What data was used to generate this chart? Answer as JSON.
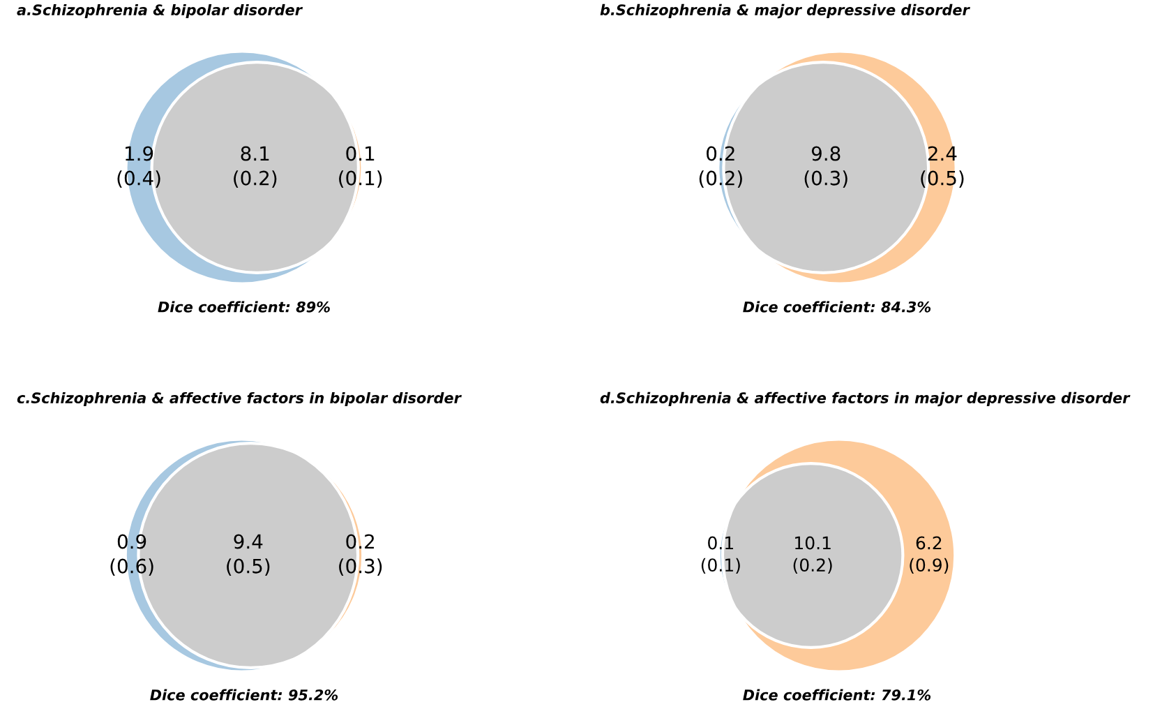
{
  "chart_data": [
    {
      "type": "other",
      "title": "a.Schizophrenia & bipolar disorder",
      "values": [
        1.9,
        8.1,
        0.1
      ],
      "colors": [
        "#a7c8e1",
        "#cccccc",
        "#fdca9a"
      ],
      "data_labels": true,
      "annotations": [
        "(0.4)",
        "(0.2)",
        "(0.1)",
        "Dice coefficient: 89%"
      ]
    },
    {
      "type": "other",
      "title": "b.Schizophrenia & major depressive disorder",
      "values": [
        0.2,
        9.8,
        2.4
      ],
      "colors": [
        "#a7c8e1",
        "#cccccc",
        "#fdca9a"
      ],
      "data_labels": true,
      "annotations": [
        "(0.2)",
        "(0.3)",
        "(0.5)",
        "Dice coefficient: 84.3%"
      ]
    },
    {
      "type": "other",
      "title": "c.Schizophrenia & affective factors in bipolar disorder",
      "values": [
        0.9,
        9.4,
        0.2
      ],
      "colors": [
        "#a7c8e1",
        "#cccccc",
        "#fdca9a"
      ],
      "data_labels": true,
      "annotations": [
        "(0.6)",
        "(0.5)",
        "(0.3)",
        "Dice coefficient: 95.2%"
      ]
    },
    {
      "type": "other",
      "title": "d.Schizophrenia & affective factors in major depressive disorder",
      "values": [
        0.1,
        10.1,
        6.2
      ],
      "colors": [
        "#a7c8e1",
        "#cccccc",
        "#fdca9a"
      ],
      "data_labels": true,
      "annotations": [
        "(0.1)",
        "(0.2)",
        "(0.9)",
        "Dice coefficient: 79.1%"
      ]
    }
  ]
}
